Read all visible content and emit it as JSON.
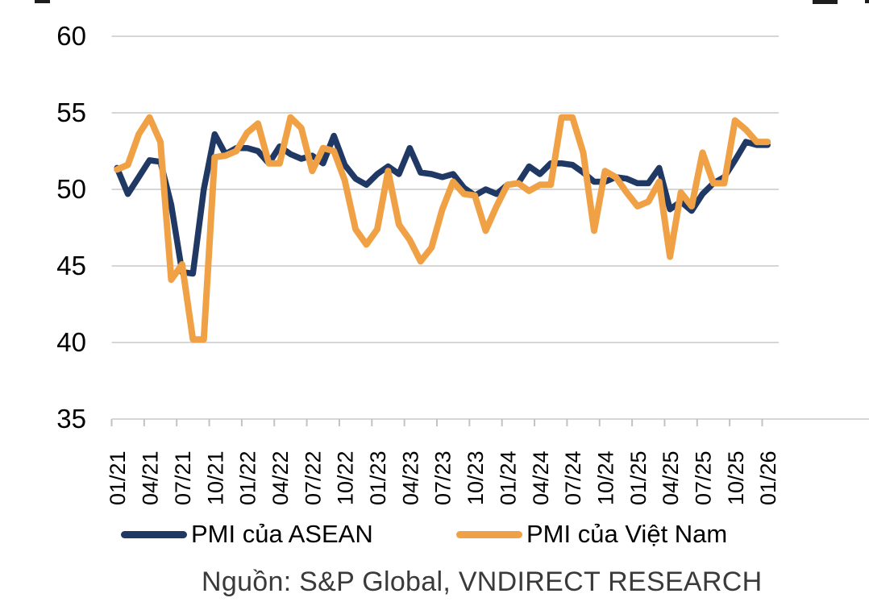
{
  "chart_data": {
    "type": "line",
    "title": "",
    "categories": [
      "01/21",
      "02/21",
      "03/21",
      "04/21",
      "05/21",
      "06/21",
      "07/21",
      "08/21",
      "09/21",
      "10/21",
      "11/21",
      "12/21",
      "01/22",
      "02/22",
      "03/22",
      "04/22",
      "05/22",
      "06/22",
      "07/22",
      "08/22",
      "09/22",
      "10/22",
      "11/22",
      "12/22",
      "01/23",
      "02/23",
      "03/23",
      "04/23",
      "05/23",
      "06/23",
      "07/23",
      "08/23",
      "09/23",
      "10/23",
      "11/23",
      "12/23",
      "01/24",
      "02/24",
      "03/24",
      "04/24",
      "05/24",
      "06/24",
      "07/24",
      "08/24",
      "09/24",
      "10/24",
      "11/24",
      "12/24",
      "01/25",
      "02/25",
      "03/25",
      "04/25",
      "05/25",
      "06/25",
      "07/25",
      "08/25",
      "09/25",
      "10/25",
      "11/25",
      "12/25",
      "01/26"
    ],
    "x_label_interval": 3,
    "series": [
      {
        "name": "PMI của ASEAN",
        "color": "#1f3864",
        "stroke_width": 7.5,
        "values": [
          51.4,
          49.7,
          50.8,
          51.9,
          51.8,
          49.0,
          44.6,
          44.5,
          50.0,
          53.6,
          52.3,
          52.7,
          52.7,
          52.5,
          51.7,
          52.8,
          52.3,
          52.0,
          52.2,
          51.7,
          53.5,
          51.6,
          50.7,
          50.3,
          51.0,
          51.5,
          51.0,
          52.7,
          51.1,
          51.0,
          50.8,
          51.0,
          50.1,
          49.6,
          50.0,
          49.7,
          50.3,
          50.4,
          51.5,
          51.0,
          51.7,
          51.7,
          51.6,
          51.1,
          50.5,
          50.5,
          50.8,
          50.7,
          50.4,
          50.4,
          51.4,
          48.7,
          49.2,
          48.6,
          49.7,
          50.4,
          50.8,
          51.9,
          53.1,
          52.9,
          52.9
        ]
      },
      {
        "name": "PMI của Việt Nam",
        "color": "#f0a145",
        "stroke_width": 8,
        "values": [
          51.3,
          51.6,
          53.6,
          54.7,
          53.1,
          44.1,
          45.1,
          40.2,
          40.2,
          52.1,
          52.2,
          52.5,
          53.7,
          54.3,
          51.7,
          51.7,
          54.7,
          54.0,
          51.2,
          52.7,
          52.5,
          50.6,
          47.4,
          46.4,
          47.4,
          51.2,
          47.7,
          46.7,
          45.3,
          46.2,
          48.7,
          50.5,
          49.7,
          49.6,
          47.3,
          48.9,
          50.3,
          50.4,
          49.9,
          50.3,
          50.3,
          54.7,
          54.7,
          52.4,
          47.3,
          51.2,
          50.8,
          49.8,
          48.9,
          49.2,
          50.5,
          45.6,
          49.8,
          48.9,
          52.4,
          50.4,
          50.4,
          54.5,
          53.9,
          53.1,
          53.1
        ]
      }
    ],
    "ylim": [
      35,
      60
    ],
    "y_ticks": [
      60,
      55,
      50,
      45,
      40,
      35
    ],
    "grid": true,
    "gridline_color": "#d6d6d6",
    "tick_color": "#c2c2c2",
    "axis_text_color": "#000000",
    "legend_position": "bottom",
    "source_note": "Nguồn: S&P Global, VNDIRECT RESEARCH"
  }
}
